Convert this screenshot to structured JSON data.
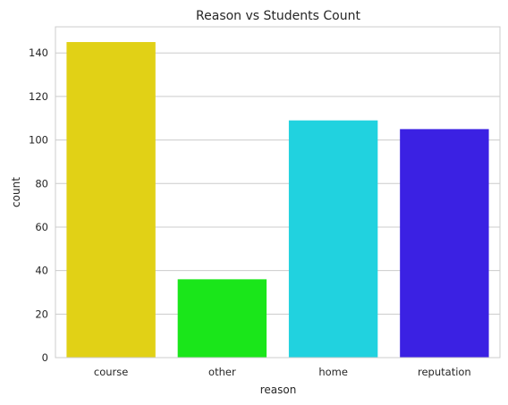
{
  "chart_data": {
    "type": "bar",
    "title": "Reason vs Students Count",
    "xlabel": "reason",
    "ylabel": "count",
    "categories": [
      "course",
      "other",
      "home",
      "reputation"
    ],
    "values": [
      145,
      36,
      109,
      105
    ],
    "colors": [
      "#e1d116",
      "#1ae61a",
      "#21d2df",
      "#3b21e3"
    ],
    "ylim": [
      0,
      152
    ],
    "yticks": [
      0,
      20,
      40,
      60,
      80,
      100,
      120,
      140
    ],
    "grid": "horizontal",
    "legend": "none"
  }
}
